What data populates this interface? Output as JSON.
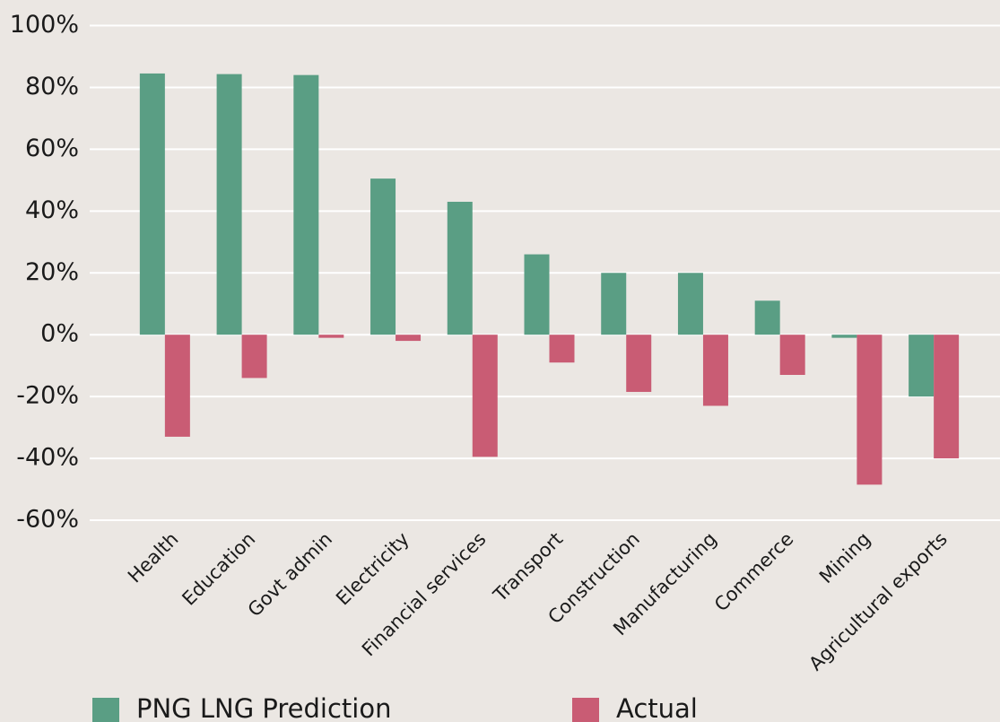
{
  "chart_data": {
    "type": "bar",
    "categories": [
      "Health",
      "Education",
      "Govt admin",
      "Electricity",
      "Financial services",
      "Transport",
      "Construction",
      "Manufacturing",
      "Commerce",
      "Mining",
      "Agricultural exports"
    ],
    "series": [
      {
        "name": "PNG LNG Prediction",
        "color": "#5a9e84",
        "values": [
          84.5,
          84.3,
          84,
          50.5,
          43,
          26,
          20,
          20,
          11,
          -1,
          -20
        ]
      },
      {
        "name": "Actual",
        "color": "#c95c74",
        "values": [
          -33,
          -14,
          -1,
          -2,
          -39.5,
          -9,
          -18.5,
          -23,
          -13,
          -48.5,
          -40
        ]
      }
    ],
    "ylim": [
      -60,
      100
    ],
    "yticks": [
      {
        "value": -60,
        "label": "-60%"
      },
      {
        "value": -40,
        "label": "-40%"
      },
      {
        "value": -20,
        "label": "-20%"
      },
      {
        "value": 0,
        "label": "0%"
      },
      {
        "value": 20,
        "label": "20%"
      },
      {
        "value": 40,
        "label": "40%"
      },
      {
        "value": 60,
        "label": "60%"
      },
      {
        "value": 80,
        "label": "80%"
      },
      {
        "value": 100,
        "label": "100%"
      }
    ],
    "grid": true,
    "legend": "bottom"
  }
}
